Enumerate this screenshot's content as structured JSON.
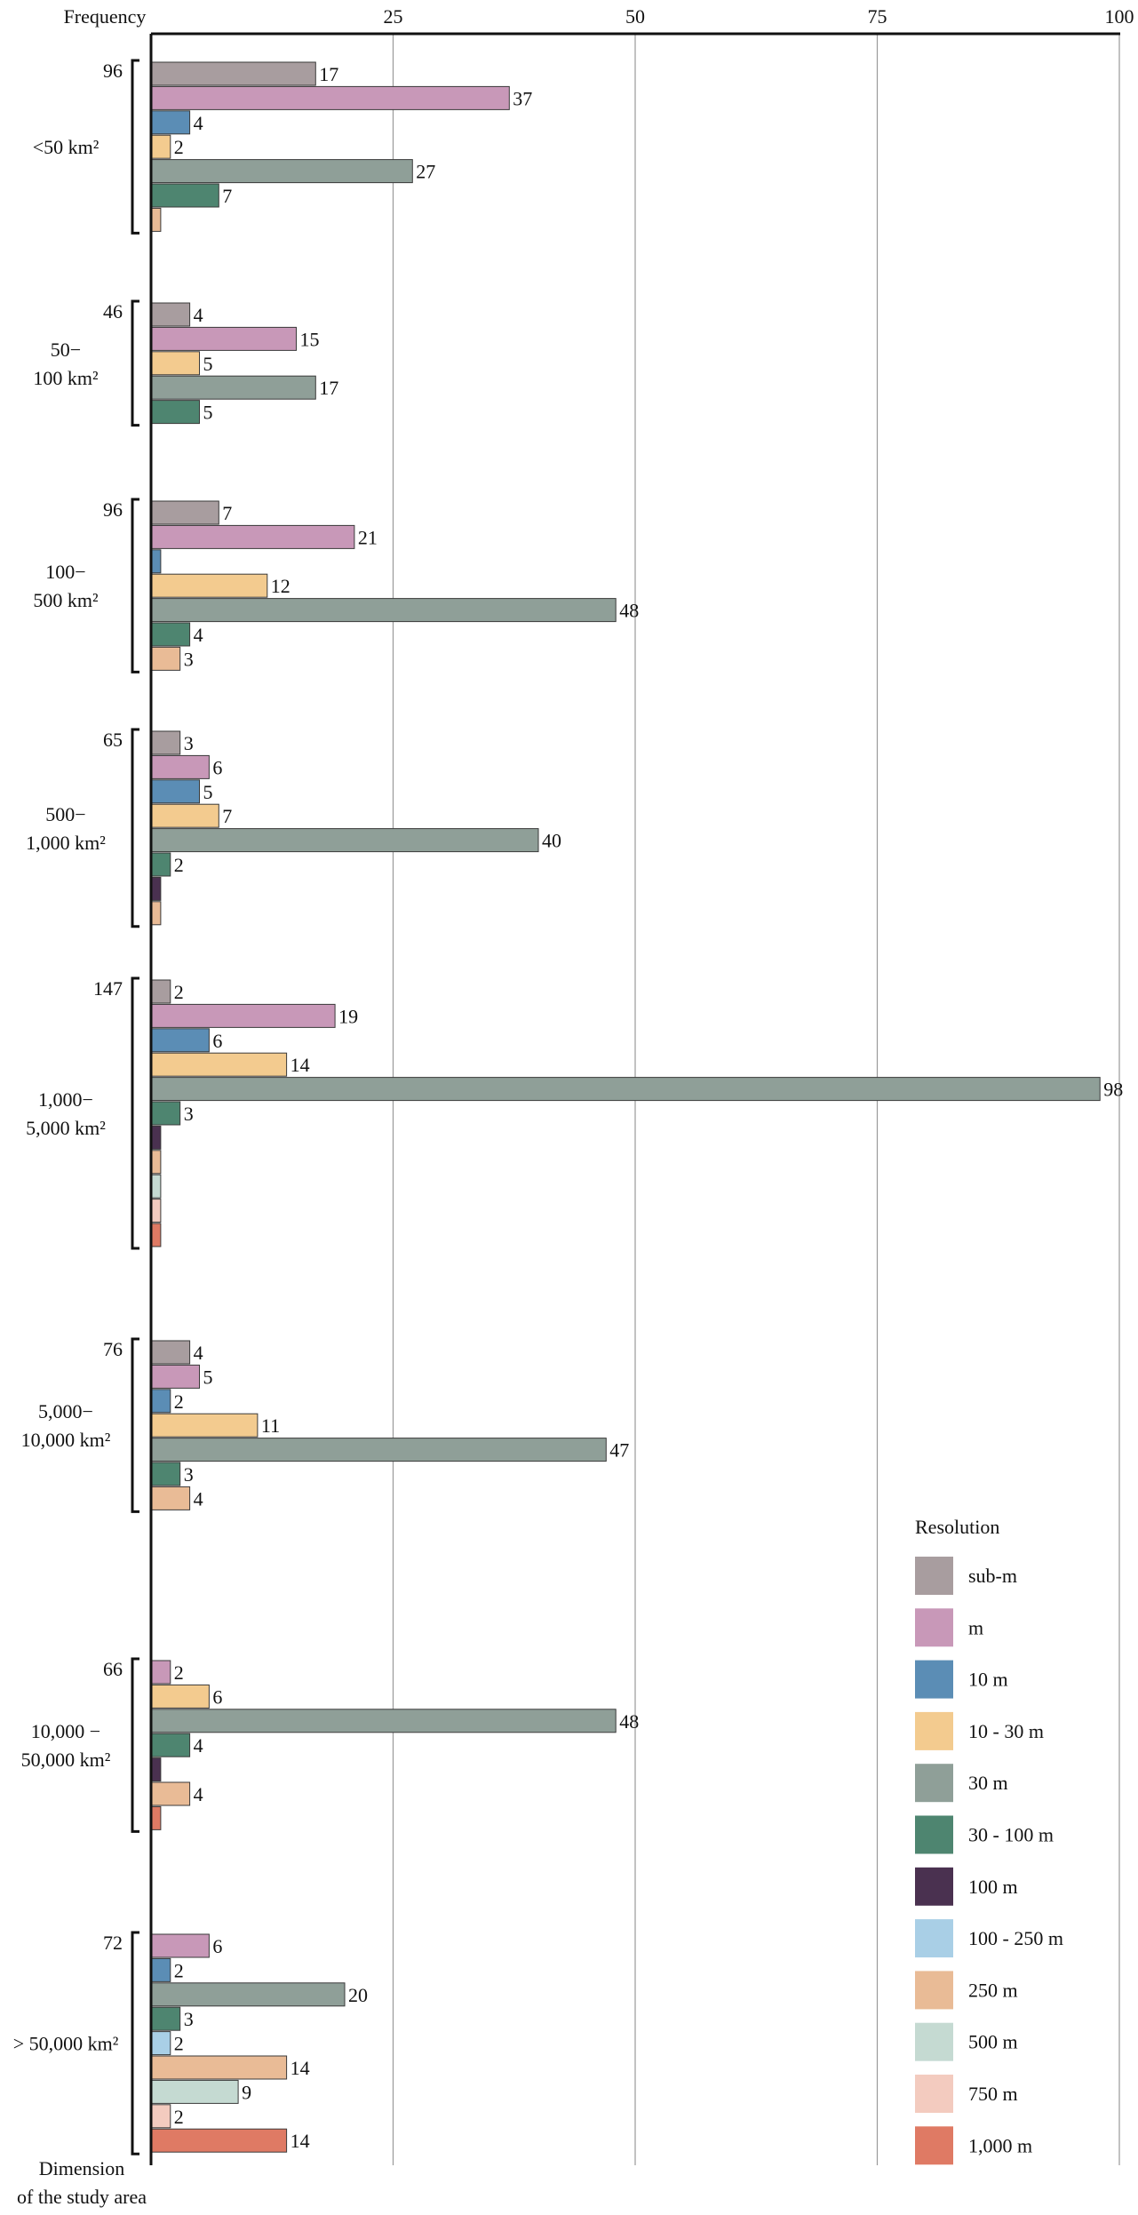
{
  "chart_data": {
    "type": "bar",
    "orientation": "horizontal",
    "xlabel": "Frequency",
    "ylabel": [
      "Dimension",
      "of the study area"
    ],
    "xlim": [
      0,
      100
    ],
    "xticks": [
      25,
      50,
      75,
      100
    ],
    "grid": "vertical lines at ticks",
    "legend": {
      "title": "Resolution",
      "position": "bottom-right",
      "items": [
        {
          "name": "sub-m",
          "color": "#a89d9f"
        },
        {
          "name": "m",
          "color": "#c898b8"
        },
        {
          "name": "10 m",
          "color": "#5b8db5"
        },
        {
          "name": "10 - 30 m",
          "color": "#f3cb8f"
        },
        {
          "name": "30 m",
          "color": "#8f9f98"
        },
        {
          "name": "30 - 100 m",
          "color": "#4e8570"
        },
        {
          "name": "100 m",
          "color": "#4a3150"
        },
        {
          "name": "100 - 250 m",
          "color": "#a9cfe6"
        },
        {
          "name": "250 m",
          "color": "#e9bb96"
        },
        {
          "name": "500 m",
          "color": "#c5dad2"
        },
        {
          "name": "750 m",
          "color": "#f3cbbf"
        },
        {
          "name": "1,000 m",
          "color": "#df7a64"
        }
      ]
    },
    "groups": [
      {
        "label": [
          "<50 km²"
        ],
        "total": "96",
        "bars": [
          {
            "series": "sub-m",
            "value": 17,
            "label": "17"
          },
          {
            "series": "m",
            "value": 37,
            "label": "37"
          },
          {
            "series": "10 m",
            "value": 4,
            "label": "4"
          },
          {
            "series": "10 - 30 m",
            "value": 2,
            "label": "2"
          },
          {
            "series": "30 m",
            "value": 27,
            "label": "27"
          },
          {
            "series": "30 - 100 m",
            "value": 7,
            "label": "7"
          },
          {
            "series": "250 m",
            "value": 1,
            "label": ""
          }
        ]
      },
      {
        "label": [
          "50−",
          "100 km²"
        ],
        "total": "46",
        "bars": [
          {
            "series": "sub-m",
            "value": 4,
            "label": "4"
          },
          {
            "series": "m",
            "value": 15,
            "label": "15"
          },
          {
            "series": "10 - 30 m",
            "value": 5,
            "label": "5"
          },
          {
            "series": "30 m",
            "value": 17,
            "label": "17"
          },
          {
            "series": "30 - 100 m",
            "value": 5,
            "label": "5"
          }
        ]
      },
      {
        "label": [
          "100−",
          "500 km²"
        ],
        "total": "96",
        "bars": [
          {
            "series": "sub-m",
            "value": 7,
            "label": "7"
          },
          {
            "series": "m",
            "value": 21,
            "label": "21"
          },
          {
            "series": "10 m",
            "value": 1,
            "label": ""
          },
          {
            "series": "10 - 30 m",
            "value": 12,
            "label": "12"
          },
          {
            "series": "30 m",
            "value": 48,
            "label": "48"
          },
          {
            "series": "30 - 100 m",
            "value": 4,
            "label": "4"
          },
          {
            "series": "250 m",
            "value": 3,
            "label": "3"
          }
        ]
      },
      {
        "label": [
          "500−",
          "1,000 km²"
        ],
        "total": "65",
        "bars": [
          {
            "series": "sub-m",
            "value": 3,
            "label": "3"
          },
          {
            "series": "m",
            "value": 6,
            "label": "6"
          },
          {
            "series": "10 m",
            "value": 5,
            "label": "5"
          },
          {
            "series": "10 - 30 m",
            "value": 7,
            "label": "7"
          },
          {
            "series": "30 m",
            "value": 40,
            "label": "40"
          },
          {
            "series": "30 - 100 m",
            "value": 2,
            "label": "2"
          },
          {
            "series": "100 m",
            "value": 1,
            "label": ""
          },
          {
            "series": "250 m",
            "value": 1,
            "label": ""
          }
        ]
      },
      {
        "label": [
          "1,000−",
          "5,000 km²"
        ],
        "total": "147",
        "bars": [
          {
            "series": "sub-m",
            "value": 2,
            "label": "2"
          },
          {
            "series": "m",
            "value": 19,
            "label": "19"
          },
          {
            "series": "10 m",
            "value": 6,
            "label": "6"
          },
          {
            "series": "10 - 30 m",
            "value": 14,
            "label": "14"
          },
          {
            "series": "30 m",
            "value": 98,
            "label": "98"
          },
          {
            "series": "30 - 100 m",
            "value": 3,
            "label": "3"
          },
          {
            "series": "100 m",
            "value": 1,
            "label": ""
          },
          {
            "series": "250 m",
            "value": 1,
            "label": ""
          },
          {
            "series": "500 m",
            "value": 1,
            "label": ""
          },
          {
            "series": "750 m",
            "value": 1,
            "label": ""
          },
          {
            "series": "1,000 m",
            "value": 1,
            "label": ""
          }
        ]
      },
      {
        "label": [
          "5,000−",
          "10,000 km²"
        ],
        "total": "76",
        "bars": [
          {
            "series": "sub-m",
            "value": 4,
            "label": "4"
          },
          {
            "series": "m",
            "value": 5,
            "label": "5"
          },
          {
            "series": "10 m",
            "value": 2,
            "label": "2"
          },
          {
            "series": "10 - 30 m",
            "value": 11,
            "label": "11"
          },
          {
            "series": "30 m",
            "value": 47,
            "label": "47"
          },
          {
            "series": "30 - 100 m",
            "value": 3,
            "label": "3"
          },
          {
            "series": "250 m",
            "value": 4,
            "label": "4"
          }
        ]
      },
      {
        "label": [
          "10,000 −",
          "50,000 km²"
        ],
        "total": "66",
        "bars": [
          {
            "series": "m",
            "value": 2,
            "label": "2"
          },
          {
            "series": "10 - 30 m",
            "value": 6,
            "label": "6"
          },
          {
            "series": "30 m",
            "value": 48,
            "label": "48"
          },
          {
            "series": "30 - 100 m",
            "value": 4,
            "label": "4"
          },
          {
            "series": "100 m",
            "value": 1,
            "label": ""
          },
          {
            "series": "250 m",
            "value": 4,
            "label": "4"
          },
          {
            "series": "1,000 m",
            "value": 1,
            "label": ""
          }
        ]
      },
      {
        "label": [
          "> 50,000 km²"
        ],
        "total": "72",
        "bars": [
          {
            "series": "m",
            "value": 6,
            "label": "6"
          },
          {
            "series": "10 m",
            "value": 2,
            "label": "2"
          },
          {
            "series": "30 m",
            "value": 20,
            "label": "20"
          },
          {
            "series": "30 - 100 m",
            "value": 3,
            "label": "3"
          },
          {
            "series": "100 - 250 m",
            "value": 2,
            "label": "2"
          },
          {
            "series": "250 m",
            "value": 14,
            "label": "14"
          },
          {
            "series": "500 m",
            "value": 9,
            "label": "9"
          },
          {
            "series": "750 m",
            "value": 2,
            "label": "2"
          },
          {
            "series": "1,000 m",
            "value": 14,
            "label": "14"
          }
        ]
      }
    ]
  }
}
